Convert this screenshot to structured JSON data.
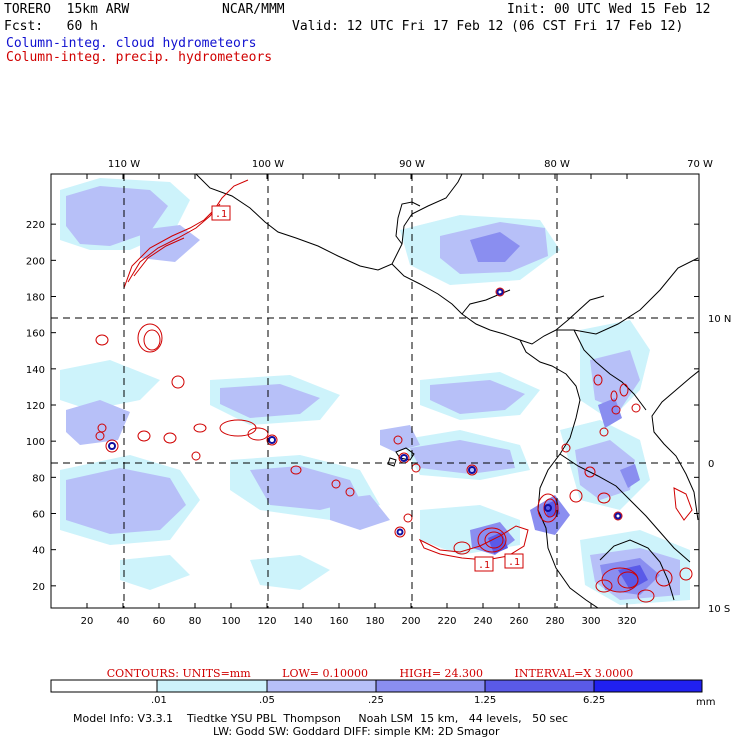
{
  "header": {
    "model": "TORERO  15km ARW",
    "org": "NCAR/MMM",
    "init": "Init: 00 UTC Wed 15 Feb 12",
    "fcst": "Fcst:   60 h",
    "valid": "Valid: 12 UTC Fri 17 Feb 12 (06 CST Fri 17 Feb 12)",
    "field1": "Column-integ. cloud hydrometeors",
    "field2": "Column-integ. precip. hydrometeors"
  },
  "colors": {
    "cloud_field": "#1010d0",
    "precip_field": "#d00000",
    "shade_levels": [
      "#ffffff",
      "#cdf3fb",
      "#b7c0f8",
      "#8a8ef0",
      "#5a5ae8",
      "#2020f0"
    ]
  },
  "map": {
    "longitude_labels": [
      "110 W",
      "100 W",
      "90 W",
      "80 W",
      "70 W"
    ],
    "latitude_labels": [
      "10 N",
      "0",
      "10 S"
    ],
    "x_ticks": [
      "20",
      "40",
      "60",
      "80",
      "100",
      "120",
      "140",
      "160",
      "180",
      "200",
      "220",
      "240",
      "260",
      "280",
      "300",
      "320"
    ],
    "y_ticks": [
      "20",
      "40",
      "60",
      "80",
      "100",
      "120",
      "140",
      "160",
      "180",
      "200",
      "220"
    ],
    "contour_labels": [
      ".1",
      ".1",
      ".1"
    ]
  },
  "legend": {
    "contours": "CONTOURS:  UNITS=mm",
    "low": "LOW= 0.10000",
    "high": "HIGH=  24.300",
    "interval": "INTERVAL=X  3.0000",
    "scale_labels": [
      ".01",
      ".05",
      ".25",
      "1.25",
      "6.25"
    ],
    "units": "mm"
  },
  "footer": {
    "line1": "Model Info: V3.3.1    Tiedtke YSU PBL  Thompson     Noah LSM  15 km,   44 levels,   50 sec",
    "line2": "LW: Godd SW: Goddard DIFF: simple KM: 2D Smagor"
  }
}
